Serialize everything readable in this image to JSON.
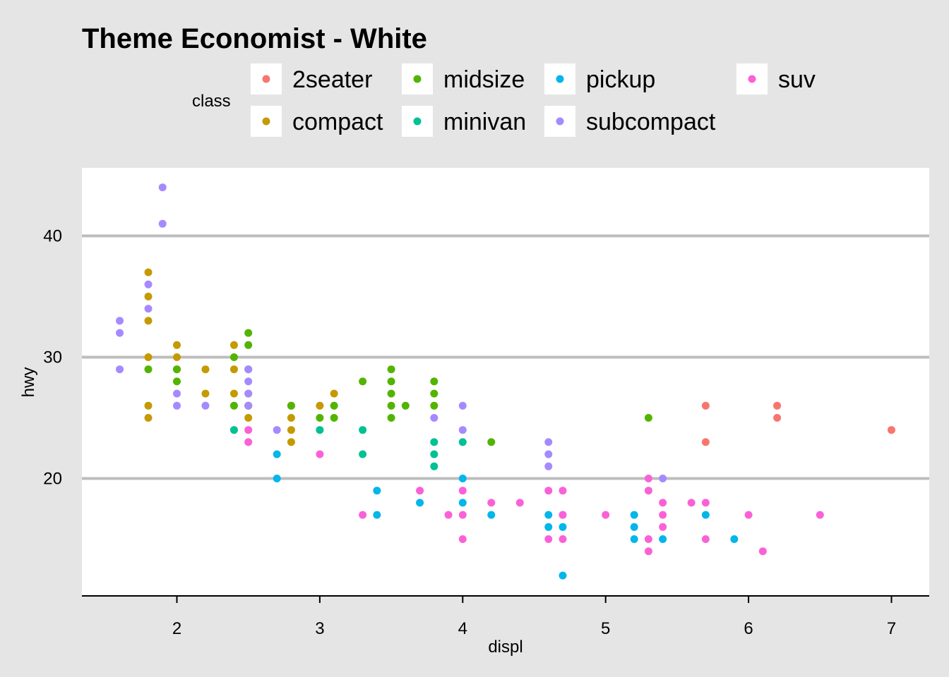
{
  "chart_data": {
    "type": "scatter",
    "title": "Theme Economist - White",
    "xlabel": "displ",
    "ylabel": "hwy",
    "xlim": [
      1.35,
      7.3
    ],
    "ylim": [
      10.5,
      45.5
    ],
    "x_ticks": [
      2,
      3,
      4,
      5,
      6,
      7
    ],
    "y_ticks": [
      20,
      30,
      40
    ],
    "grid": "horizontal major lines",
    "legend": {
      "title": "class",
      "position": "top",
      "entries": [
        "2seater",
        "compact",
        "midsize",
        "minivan",
        "pickup",
        "subcompact",
        "suv"
      ]
    },
    "series": [
      {
        "name": "2seater",
        "color": "#F8766D",
        "points": [
          [
            5.7,
            26
          ],
          [
            5.7,
            23
          ],
          [
            6.2,
            26
          ],
          [
            6.2,
            25
          ],
          [
            7.0,
            24
          ]
        ]
      },
      {
        "name": "compact",
        "color": "#C49A00",
        "points": [
          [
            1.8,
            37
          ],
          [
            1.8,
            35
          ],
          [
            1.8,
            33
          ],
          [
            1.8,
            30
          ],
          [
            1.8,
            26
          ],
          [
            1.8,
            25
          ],
          [
            2.0,
            31
          ],
          [
            2.0,
            30
          ],
          [
            2.0,
            29
          ],
          [
            2.2,
            29
          ],
          [
            2.2,
            27
          ],
          [
            2.4,
            31
          ],
          [
            2.4,
            29
          ],
          [
            2.4,
            27
          ],
          [
            2.5,
            27
          ],
          [
            2.5,
            26
          ],
          [
            2.5,
            25
          ],
          [
            2.8,
            26
          ],
          [
            2.8,
            25
          ],
          [
            2.8,
            24
          ],
          [
            2.8,
            23
          ],
          [
            3.0,
            26
          ],
          [
            3.1,
            27
          ]
        ]
      },
      {
        "name": "midsize",
        "color": "#53B400",
        "points": [
          [
            1.8,
            29
          ],
          [
            2.0,
            29
          ],
          [
            2.0,
            28
          ],
          [
            2.4,
            30
          ],
          [
            2.4,
            26
          ],
          [
            2.5,
            32
          ],
          [
            2.5,
            31
          ],
          [
            2.5,
            29
          ],
          [
            2.5,
            26
          ],
          [
            2.8,
            26
          ],
          [
            3.0,
            25
          ],
          [
            3.1,
            26
          ],
          [
            3.1,
            25
          ],
          [
            3.3,
            28
          ],
          [
            3.5,
            29
          ],
          [
            3.5,
            28
          ],
          [
            3.5,
            27
          ],
          [
            3.5,
            26
          ],
          [
            3.5,
            25
          ],
          [
            3.6,
            26
          ],
          [
            3.8,
            28
          ],
          [
            3.8,
            27
          ],
          [
            3.8,
            26
          ],
          [
            4.2,
            23
          ],
          [
            5.3,
            25
          ]
        ]
      },
      {
        "name": "minivan",
        "color": "#00C094",
        "points": [
          [
            2.4,
            24
          ],
          [
            3.0,
            24
          ],
          [
            3.3,
            24
          ],
          [
            3.3,
            22
          ],
          [
            3.8,
            23
          ],
          [
            3.8,
            22
          ],
          [
            3.8,
            21
          ],
          [
            4.0,
            23
          ]
        ]
      },
      {
        "name": "pickup",
        "color": "#00B6EB",
        "points": [
          [
            2.7,
            22
          ],
          [
            2.7,
            20
          ],
          [
            3.4,
            19
          ],
          [
            3.4,
            17
          ],
          [
            3.7,
            18
          ],
          [
            4.0,
            20
          ],
          [
            4.0,
            18
          ],
          [
            4.2,
            17
          ],
          [
            4.6,
            17
          ],
          [
            4.6,
            16
          ],
          [
            4.7,
            17
          ],
          [
            4.7,
            16
          ],
          [
            4.7,
            12
          ],
          [
            5.2,
            17
          ],
          [
            5.2,
            16
          ],
          [
            5.2,
            15
          ],
          [
            5.4,
            15
          ],
          [
            5.7,
            17
          ],
          [
            5.9,
            15
          ]
        ]
      },
      {
        "name": "subcompact",
        "color": "#A58AFF",
        "points": [
          [
            1.6,
            33
          ],
          [
            1.6,
            32
          ],
          [
            1.6,
            29
          ],
          [
            1.8,
            36
          ],
          [
            1.8,
            34
          ],
          [
            1.9,
            44
          ],
          [
            1.9,
            41
          ],
          [
            2.0,
            27
          ],
          [
            2.0,
            26
          ],
          [
            2.2,
            26
          ],
          [
            2.5,
            29
          ],
          [
            2.5,
            28
          ],
          [
            2.5,
            27
          ],
          [
            2.5,
            26
          ],
          [
            2.7,
            24
          ],
          [
            3.8,
            25
          ],
          [
            4.0,
            26
          ],
          [
            4.0,
            24
          ],
          [
            4.6,
            23
          ],
          [
            4.6,
            22
          ],
          [
            4.6,
            21
          ],
          [
            5.4,
            20
          ]
        ]
      },
      {
        "name": "suv",
        "color": "#FB61D7",
        "points": [
          [
            2.5,
            24
          ],
          [
            2.5,
            23
          ],
          [
            3.0,
            22
          ],
          [
            3.3,
            17
          ],
          [
            3.7,
            19
          ],
          [
            3.9,
            17
          ],
          [
            4.0,
            19
          ],
          [
            4.0,
            17
          ],
          [
            4.0,
            15
          ],
          [
            4.2,
            18
          ],
          [
            4.4,
            18
          ],
          [
            4.6,
            19
          ],
          [
            4.6,
            15
          ],
          [
            4.7,
            19
          ],
          [
            4.7,
            17
          ],
          [
            4.7,
            15
          ],
          [
            5.0,
            17
          ],
          [
            5.3,
            20
          ],
          [
            5.3,
            19
          ],
          [
            5.3,
            15
          ],
          [
            5.3,
            14
          ],
          [
            5.4,
            18
          ],
          [
            5.4,
            17
          ],
          [
            5.4,
            16
          ],
          [
            5.6,
            18
          ],
          [
            5.7,
            18
          ],
          [
            5.7,
            15
          ],
          [
            6.0,
            17
          ],
          [
            6.1,
            14
          ],
          [
            6.5,
            17
          ]
        ]
      }
    ]
  }
}
